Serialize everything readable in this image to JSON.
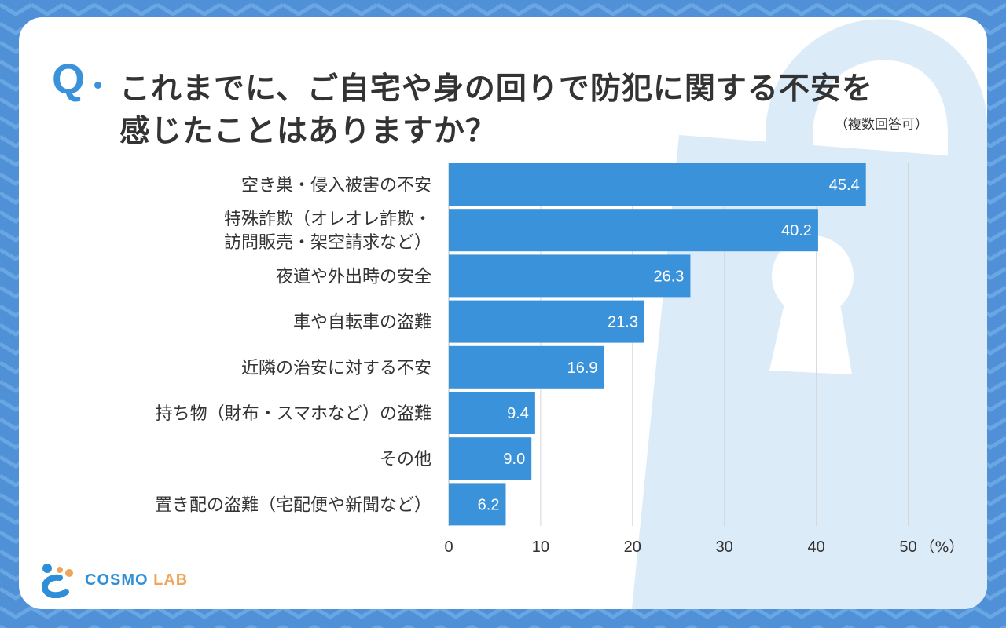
{
  "header": {
    "q_mark": "Q",
    "title_line1": "これまでに、ご自宅や身の回りで防犯に関する不安を",
    "title_line2": "感じたことはありますか？",
    "note": "（複数回答可）"
  },
  "logo": {
    "part1": "COSMO",
    "part2": "LAB"
  },
  "colors": {
    "bar": "#3a93da",
    "background": "#4f90d6",
    "watermark": "#dcebf8",
    "text": "#333333"
  },
  "chart_data": {
    "type": "bar",
    "orientation": "horizontal",
    "title": "これまでに、ご自宅や身の回りで防犯に関する不安を感じたことはありますか？",
    "categories": [
      [
        "空き巣・侵入被害の不安"
      ],
      [
        "特殊詐欺（オレオレ詐欺・",
        "訪問販売・架空請求など）"
      ],
      [
        "夜道や外出時の安全"
      ],
      [
        "車や自転車の盗難"
      ],
      [
        "近隣の治安に対する不安"
      ],
      [
        "持ち物（財布・スマホなど）の盗難"
      ],
      [
        "その他"
      ],
      [
        "置き配の盗難（宅配便や新聞など）"
      ]
    ],
    "values": [
      45.4,
      40.2,
      26.3,
      21.3,
      16.9,
      9.4,
      9.0,
      6.2
    ],
    "value_labels": [
      "45.4",
      "40.2",
      "26.3",
      "21.3",
      "16.9",
      "9.4",
      "9.0",
      "6.2"
    ],
    "xlim": [
      0,
      50
    ],
    "xticks": [
      "0",
      "10",
      "20",
      "30",
      "40",
      "50"
    ],
    "unit_label": "（%）",
    "grid": true
  }
}
